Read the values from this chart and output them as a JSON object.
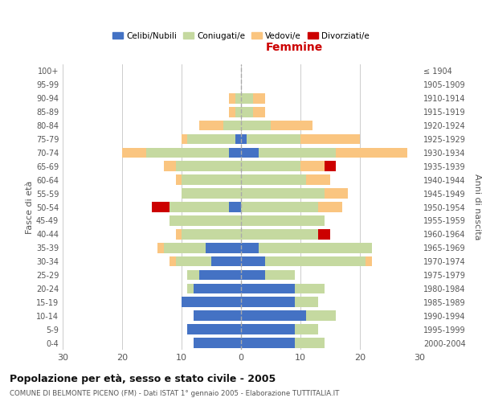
{
  "age_groups": [
    "0-4",
    "5-9",
    "10-14",
    "15-19",
    "20-24",
    "25-29",
    "30-34",
    "35-39",
    "40-44",
    "45-49",
    "50-54",
    "55-59",
    "60-64",
    "65-69",
    "70-74",
    "75-79",
    "80-84",
    "85-89",
    "90-94",
    "95-99",
    "100+"
  ],
  "birth_years": [
    "2000-2004",
    "1995-1999",
    "1990-1994",
    "1985-1989",
    "1980-1984",
    "1975-1979",
    "1970-1974",
    "1965-1969",
    "1960-1964",
    "1955-1959",
    "1950-1954",
    "1945-1949",
    "1940-1944",
    "1935-1939",
    "1930-1934",
    "1925-1929",
    "1920-1924",
    "1915-1919",
    "1910-1914",
    "1905-1909",
    "≤ 1904"
  ],
  "maschi": {
    "celibi": [
      8,
      9,
      8,
      10,
      8,
      7,
      5,
      6,
      0,
      0,
      2,
      0,
      0,
      0,
      2,
      1,
      0,
      0,
      0,
      0,
      0
    ],
    "coniugati": [
      0,
      0,
      0,
      0,
      1,
      2,
      6,
      7,
      10,
      12,
      10,
      10,
      10,
      11,
      14,
      8,
      3,
      1,
      1,
      0,
      0
    ],
    "vedovi": [
      0,
      0,
      0,
      0,
      0,
      0,
      1,
      1,
      1,
      0,
      0,
      0,
      1,
      2,
      4,
      1,
      4,
      1,
      1,
      0,
      0
    ],
    "divorziati": [
      0,
      0,
      0,
      0,
      0,
      0,
      0,
      0,
      0,
      0,
      3,
      0,
      0,
      0,
      0,
      0,
      0,
      0,
      0,
      0,
      0
    ]
  },
  "femmine": {
    "nubili": [
      9,
      9,
      11,
      9,
      9,
      4,
      4,
      3,
      0,
      0,
      0,
      0,
      0,
      0,
      3,
      1,
      0,
      0,
      0,
      0,
      0
    ],
    "coniugate": [
      5,
      4,
      5,
      4,
      5,
      5,
      17,
      19,
      13,
      14,
      13,
      14,
      11,
      10,
      13,
      9,
      5,
      2,
      2,
      0,
      0
    ],
    "vedove": [
      0,
      0,
      0,
      0,
      0,
      0,
      1,
      0,
      0,
      0,
      4,
      4,
      4,
      4,
      12,
      10,
      7,
      2,
      2,
      0,
      0
    ],
    "divorziate": [
      0,
      0,
      0,
      0,
      0,
      0,
      0,
      0,
      2,
      0,
      0,
      0,
      0,
      2,
      0,
      0,
      0,
      0,
      0,
      0,
      0
    ]
  },
  "colors": {
    "celibi": "#4472C4",
    "coniugati": "#C5D9A0",
    "vedovi": "#FAC580",
    "divorziati": "#CC0000"
  },
  "xlim": 30,
  "title": "Popolazione per età, sesso e stato civile - 2005",
  "subtitle": "COMUNE DI BELMONTE PICENO (FM) - Dati ISTAT 1° gennaio 2005 - Elaborazione TUTTITALIA.IT",
  "ylabel_left": "Fasce di età",
  "ylabel_right": "Anni di nascita"
}
